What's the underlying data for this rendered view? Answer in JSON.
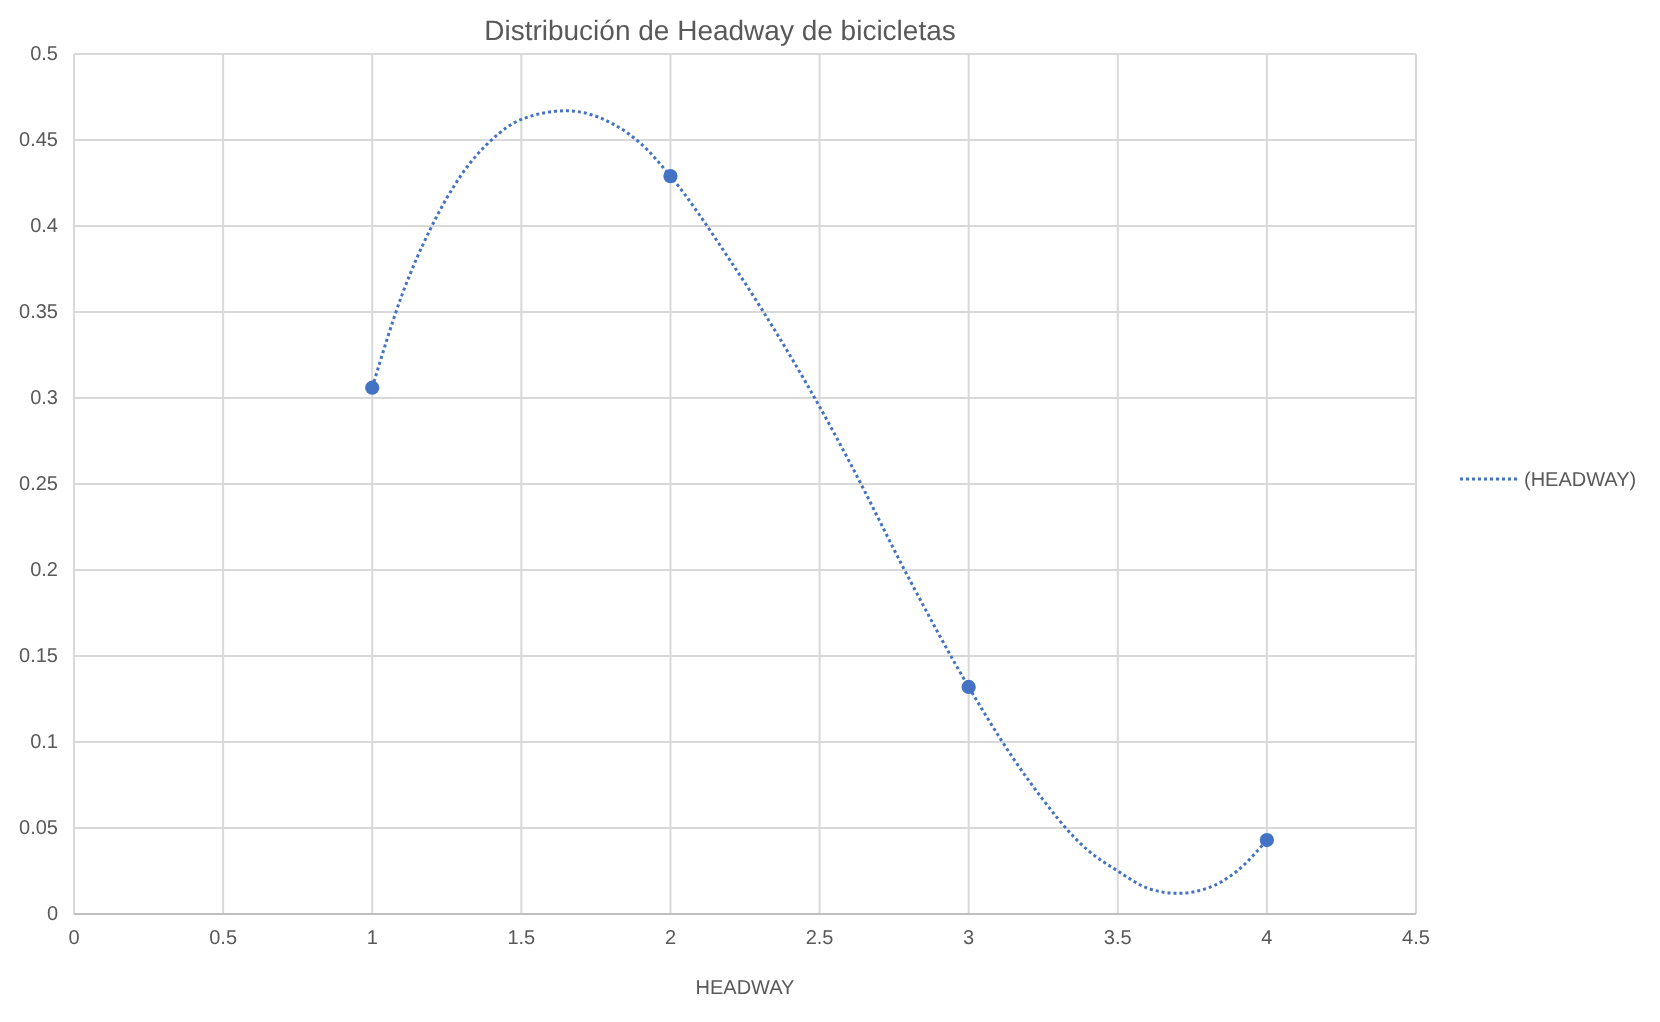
{
  "chart_data": {
    "type": "scatter",
    "title": "Distribución de Headway de bicicletas",
    "xlabel": "HEADWAY",
    "xlim": [
      0,
      4.5
    ],
    "xticks": [
      0,
      0.5,
      1,
      1.5,
      2,
      2.5,
      3,
      3.5,
      4,
      4.5
    ],
    "ylim": [
      0,
      0.5
    ],
    "yticks": [
      0,
      0.05,
      0.1,
      0.15,
      0.2,
      0.25,
      0.3,
      0.35,
      0.4,
      0.45,
      0.5
    ],
    "grid": true,
    "legend": "right",
    "series": [
      {
        "color": "#4472c4",
        "marker": "circle",
        "x": [
          1,
          2,
          3,
          4
        ],
        "values": [
          0.306,
          0.429,
          0.132,
          0.043
        ]
      },
      {
        "type": "line",
        "name": "(HEADWAY)",
        "color": "#4472c4",
        "line_style": "dotted",
        "marker": "none",
        "x": [
          1,
          1.1,
          1.2,
          1.3,
          1.4,
          1.5,
          1.65,
          1.8,
          1.9,
          2,
          2.2,
          2.4,
          2.5,
          2.6,
          2.8,
          3,
          3.2,
          3.4,
          3.5,
          3.6,
          3.7,
          3.8,
          3.9,
          4
        ],
        "values": [
          0.306,
          0.36,
          0.4,
          0.43,
          0.45,
          0.462,
          0.467,
          0.46,
          0.448,
          0.429,
          0.38,
          0.325,
          0.295,
          0.263,
          0.195,
          0.132,
          0.078,
          0.037,
          0.025,
          0.015,
          0.012,
          0.015,
          0.025,
          0.043
        ]
      }
    ]
  }
}
